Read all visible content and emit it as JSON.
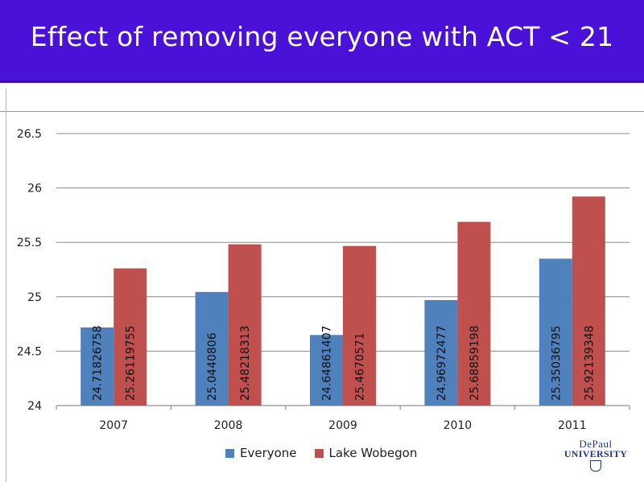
{
  "slide": {
    "title": "Effect of removing everyone with ACT < 21"
  },
  "colors": {
    "title_bg": "#4a12d9",
    "everyone": "#4f81bd",
    "wobegon": "#c0504d"
  },
  "logo": {
    "line1": "DePaul",
    "line2": "UNIVERSITY"
  },
  "chart_data": {
    "type": "bar",
    "title": "Effect of removing everyone with ACT < 21",
    "xlabel": "",
    "ylabel": "",
    "categories": [
      "2007",
      "2008",
      "2009",
      "2010",
      "2011"
    ],
    "ylim": [
      24,
      26.5
    ],
    "yticks": [
      "24",
      "24.5",
      "25",
      "25.5",
      "26",
      "26.5"
    ],
    "grid": true,
    "legend_position": "bottom",
    "series": [
      {
        "name": "Everyone",
        "values": [
          24.71826758,
          25.0440806,
          24.64861407,
          24.96972477,
          25.35036795
        ],
        "labels": [
          "24.71826758",
          "25.0440806",
          "24.64861407",
          "24.96972477",
          "25.35036795"
        ]
      },
      {
        "name": "Lake Wobegon",
        "values": [
          25.26119755,
          25.48218313,
          25.4670571,
          25.68859198,
          25.92139348
        ],
        "labels": [
          "25.26119755",
          "25.48218313",
          "25.4670571",
          "25.68859198",
          "25.92139348"
        ]
      }
    ]
  }
}
